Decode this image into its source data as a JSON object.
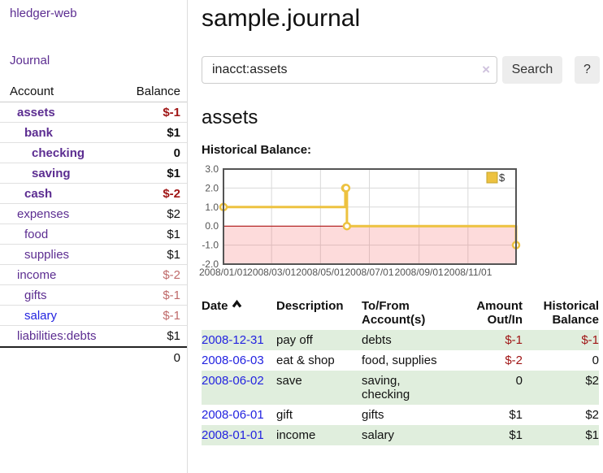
{
  "app": {
    "brand": "hledger-web"
  },
  "nav": {
    "journal_label": "Journal"
  },
  "colors": {
    "purple": "#5c2d91",
    "blue": "#2323e0",
    "negative": "#a01616",
    "negative_muted": "#bf6a6a",
    "stripe": "#e0eedd",
    "series_gold": "#edc240"
  },
  "sidebar": {
    "header": {
      "account": "Account",
      "balance": "Balance"
    },
    "accounts": [
      {
        "name": "assets",
        "indent": 0,
        "bold": true,
        "link_color": "purple",
        "balance": "$-1",
        "balance_style": "negative"
      },
      {
        "name": "bank",
        "indent": 1,
        "bold": true,
        "link_color": "purple",
        "balance": "$1",
        "balance_style": "normal"
      },
      {
        "name": "checking",
        "indent": 2,
        "bold": true,
        "link_color": "purple",
        "balance": "0",
        "balance_style": "normal"
      },
      {
        "name": "saving",
        "indent": 2,
        "bold": true,
        "link_color": "purple",
        "balance": "$1",
        "balance_style": "normal"
      },
      {
        "name": "cash",
        "indent": 1,
        "bold": true,
        "link_color": "purple",
        "balance": "$-2",
        "balance_style": "negative"
      },
      {
        "name": "expenses",
        "indent": 0,
        "bold": false,
        "link_color": "purple",
        "balance": "$2",
        "balance_style": "normal"
      },
      {
        "name": "food",
        "indent": 1,
        "bold": false,
        "link_color": "purple",
        "balance": "$1",
        "balance_style": "normal"
      },
      {
        "name": "supplies",
        "indent": 1,
        "bold": false,
        "link_color": "purple",
        "balance": "$1",
        "balance_style": "normal"
      },
      {
        "name": "income",
        "indent": 0,
        "bold": false,
        "link_color": "purple",
        "balance": "$-2",
        "balance_style": "negative-muted"
      },
      {
        "name": "gifts",
        "indent": 1,
        "bold": false,
        "link_color": "purple",
        "balance": "$-1",
        "balance_style": "negative-muted"
      },
      {
        "name": "salary",
        "indent": 1,
        "bold": false,
        "link_color": "blue",
        "balance": "$-1",
        "balance_style": "negative-muted"
      },
      {
        "name": "liabilities:debts",
        "indent": 0,
        "bold": false,
        "link_color": "purple",
        "balance": "$1",
        "balance_style": "normal"
      }
    ],
    "total": "0"
  },
  "header": {
    "title": "sample.journal"
  },
  "search": {
    "value": "inacct:assets",
    "clear_icon": "×",
    "button_label": "Search",
    "help_label": "?"
  },
  "account_page": {
    "title": "assets",
    "chart_label": "Historical Balance:"
  },
  "chart_data": {
    "type": "line",
    "step": true,
    "title": "Historical Balance:",
    "legend": "$",
    "legend_position": "top-right",
    "grid": true,
    "x_range": [
      "2008-01-01",
      "2008-12-31"
    ],
    "ylim": [
      -2.0,
      3.0
    ],
    "y_ticks": [
      "3.0",
      "2.0",
      "1.0",
      "0.0",
      "-1.0",
      "-2.0"
    ],
    "x_tick_labels": [
      "2008/01/01",
      "2008/03/01",
      "2008/05/01",
      "2008/07/01",
      "2008/09/01",
      "2008/11/01"
    ],
    "series": [
      {
        "name": "$",
        "color": "#edc240",
        "points": [
          [
            "2008-01-01",
            1
          ],
          [
            "2008-06-01",
            2
          ],
          [
            "2008-06-02",
            2
          ],
          [
            "2008-06-03",
            0
          ],
          [
            "2008-12-31",
            -1
          ]
        ]
      }
    ],
    "negative_region_color": "rgba(245,90,90,0.22)",
    "zero_line_color": "#aa0000"
  },
  "register": {
    "columns": [
      "Date",
      "Description",
      "To/From Account(s)",
      "Amount Out/In",
      "Historical Balance"
    ],
    "rows": [
      {
        "date": "2008-12-31",
        "description": "pay off",
        "accounts": "debts",
        "amount": "$-1",
        "amount_style": "negative",
        "balance": "$-1",
        "balance_style": "negative"
      },
      {
        "date": "2008-06-03",
        "description": "eat & shop",
        "accounts": "food, supplies",
        "amount": "$-2",
        "amount_style": "negative",
        "balance": "0",
        "balance_style": "normal"
      },
      {
        "date": "2008-06-02",
        "description": "save",
        "accounts": "saving, checking",
        "amount": "0",
        "amount_style": "normal",
        "balance": "$2",
        "balance_style": "normal"
      },
      {
        "date": "2008-06-01",
        "description": "gift",
        "accounts": "gifts",
        "amount": "$1",
        "amount_style": "normal",
        "balance": "$2",
        "balance_style": "normal"
      },
      {
        "date": "2008-01-01",
        "description": "income",
        "accounts": "salary",
        "amount": "$1",
        "amount_style": "normal",
        "balance": "$1",
        "balance_style": "normal"
      }
    ]
  }
}
